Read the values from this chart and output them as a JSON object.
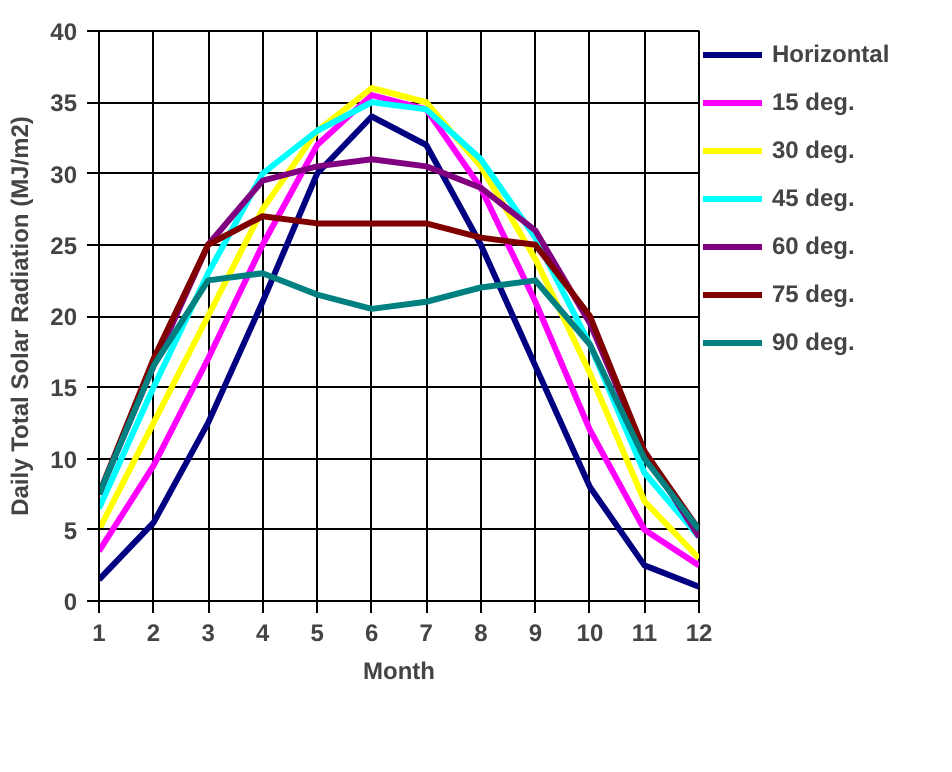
{
  "chart_data": {
    "type": "line",
    "xlabel": "Month",
    "ylabel": "Daily Total Solar Radiation (MJ/m2)",
    "x": [
      1,
      2,
      3,
      4,
      5,
      6,
      7,
      8,
      9,
      10,
      11,
      12
    ],
    "xlim": [
      1,
      12
    ],
    "xticks": [
      1,
      2,
      3,
      4,
      5,
      6,
      7,
      8,
      9,
      10,
      11,
      12
    ],
    "ylim": [
      0,
      40
    ],
    "yticks": [
      0,
      5,
      10,
      15,
      20,
      25,
      30,
      35,
      40
    ],
    "grid": true,
    "legend": "right",
    "line_style": "solid",
    "series": [
      {
        "name": "Horizontal",
        "color": "#000080",
        "values": [
          1.5,
          5.5,
          12.5,
          21,
          30,
          34,
          32,
          25,
          16.5,
          8,
          2.5,
          1
        ]
      },
      {
        "name": "15 deg.",
        "color": "#ff00ff",
        "values": [
          3.5,
          9.5,
          17,
          25,
          32,
          35.5,
          34.5,
          29,
          21,
          12,
          5,
          2.5
        ]
      },
      {
        "name": "30 deg.",
        "color": "#ffff00",
        "values": [
          5,
          12.5,
          20,
          27.5,
          33,
          36,
          35,
          30.5,
          24,
          16,
          7,
          3
        ]
      },
      {
        "name": "45 deg.",
        "color": "#00ffff",
        "values": [
          6.5,
          15,
          23,
          30,
          33,
          35,
          34.5,
          31,
          25.5,
          18,
          9,
          4.5
        ]
      },
      {
        "name": "60 deg.",
        "color": "#800080",
        "values": [
          7.5,
          16.5,
          25,
          29.5,
          30.5,
          31,
          30.5,
          29,
          26,
          19.5,
          10.5,
          4.5
        ]
      },
      {
        "name": "75 deg.",
        "color": "#800000",
        "values": [
          7.5,
          17,
          25,
          27,
          26.5,
          26.5,
          26.5,
          25.5,
          25,
          20,
          10.5,
          5
        ]
      },
      {
        "name": "90 deg.",
        "color": "#008080",
        "values": [
          7.5,
          16.5,
          22.5,
          23,
          21.5,
          20.5,
          21,
          22,
          22.5,
          18,
          10,
          5
        ]
      }
    ]
  }
}
